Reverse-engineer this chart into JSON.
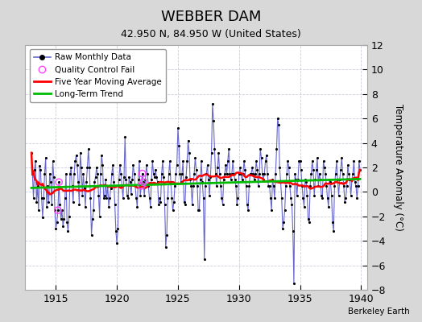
{
  "title": "WEBBER DAM",
  "subtitle": "42.950 N, 84.950 W (United States)",
  "ylabel": "Temperature Anomaly (°C)",
  "attribution": "Berkeley Earth",
  "ylim": [
    -8,
    12
  ],
  "yticks": [
    -8,
    -6,
    -4,
    -2,
    0,
    2,
    4,
    6,
    8,
    10,
    12
  ],
  "xlim": [
    1912.5,
    1940.5
  ],
  "xticks": [
    1915,
    1920,
    1925,
    1930,
    1935,
    1940
  ],
  "bg_color": "#d8d8d8",
  "plot_bg_color": "#ffffff",
  "raw_line_color": "#6666cc",
  "raw_dot_color": "#000000",
  "ma_color": "#ff0000",
  "trend_color": "#00bb00",
  "qc_color": "#ff44ff",
  "raw_data": [
    3.2,
    1.5,
    -0.5,
    1.8,
    2.5,
    -0.8,
    0.5,
    -1.5,
    2.1,
    1.8,
    -0.5,
    -2.1,
    -0.5,
    1.5,
    2.8,
    -1.2,
    0.5,
    -0.8,
    1.5,
    0.8,
    -1.0,
    2.5,
    1.2,
    -1.5,
    -3.0,
    -2.5,
    -1.5,
    0.8,
    -1.0,
    -2.2,
    -1.5,
    -2.8,
    -2.2,
    -0.5,
    1.5,
    -2.5,
    -3.2,
    -2.0,
    1.5,
    2.0,
    0.5,
    -0.8,
    1.5,
    2.5,
    3.0,
    2.2,
    0.8,
    -1.0,
    3.2,
    2.0,
    -0.3,
    1.5,
    0.3,
    -1.2,
    0.8,
    2.0,
    3.5,
    2.0,
    -0.5,
    -3.5,
    -2.2,
    -1.5,
    0.8,
    1.2,
    2.0,
    1.5,
    -0.3,
    -2.0,
    1.5,
    3.0,
    2.2,
    -0.5,
    -0.3,
    1.0,
    -0.5,
    0.5,
    -1.2,
    -0.5,
    0.3,
    1.5,
    2.2,
    0.8,
    -1.0,
    -3.2,
    -4.2,
    -3.0,
    1.0,
    2.2,
    1.5,
    0.5,
    -0.5,
    1.2,
    4.5,
    1.0,
    -0.3,
    -0.5,
    1.2,
    0.8,
    -0.2,
    1.0,
    2.2,
    1.5,
    0.5,
    -0.5,
    -1.2,
    1.0,
    2.5,
    -0.3,
    0.5,
    1.5,
    0.8,
    -0.3,
    1.0,
    2.2,
    1.5,
    0.5,
    -0.5,
    -1.2,
    1.0,
    2.5,
    1.5,
    1.2,
    1.8,
    1.2,
    0.8,
    -1.0,
    -0.5,
    -0.8,
    1.5,
    2.5,
    1.2,
    -1.0,
    -4.5,
    -3.5,
    -0.5,
    1.5,
    2.5,
    0.8,
    -0.5,
    -1.5,
    -0.8,
    0.5,
    1.5,
    2.2,
    5.2,
    3.8,
    1.5,
    0.8,
    1.5,
    2.5,
    -0.8,
    -1.0,
    1.2,
    2.5,
    4.2,
    3.2,
    1.0,
    0.5,
    -1.0,
    0.5,
    1.5,
    2.8,
    1.8,
    0.5,
    -1.5,
    -1.5,
    1.0,
    2.5,
    0.8,
    -0.5,
    -5.5,
    0.5,
    1.5,
    2.2,
    1.0,
    -0.3,
    1.2,
    3.2,
    7.2,
    5.8,
    3.5,
    1.5,
    0.5,
    2.0,
    3.2,
    1.5,
    0.5,
    -0.5,
    -1.0,
    1.0,
    1.5,
    2.2,
    1.5,
    2.5,
    3.5,
    1.5,
    1.0,
    1.5,
    2.5,
    1.5,
    1.0,
    0.5,
    -1.0,
    -0.5,
    1.5,
    2.0,
    1.5,
    1.0,
    1.5,
    2.5,
    1.8,
    0.5,
    -1.0,
    -1.5,
    0.5,
    1.5,
    1.5,
    2.0,
    1.5,
    1.0,
    1.5,
    2.5,
    1.8,
    0.5,
    1.5,
    3.5,
    2.8,
    1.5,
    1.0,
    1.5,
    2.5,
    3.0,
    1.5,
    0.5,
    0.5,
    -0.5,
    -1.5,
    1.0,
    0.5,
    -0.5,
    1.5,
    3.5,
    6.0,
    5.5,
    2.0,
    0.8,
    -0.5,
    -3.0,
    -2.5,
    -1.5,
    0.5,
    1.5,
    2.5,
    2.0,
    0.5,
    -0.5,
    -1.0,
    -3.2,
    -7.5,
    1.5,
    1.0,
    -0.3,
    1.0,
    2.5,
    2.5,
    1.8,
    0.5,
    -0.5,
    -1.2,
    1.0,
    0.8,
    -0.3,
    -2.2,
    -2.5,
    0.5,
    1.5,
    2.5,
    1.8,
    -0.3,
    1.0,
    1.8,
    2.8,
    0.5,
    1.5,
    1.0,
    -0.3,
    -0.5,
    2.5,
    2.0,
    1.5,
    0.5,
    -0.5,
    -1.2,
    1.0,
    0.8,
    -0.3,
    -2.5,
    -3.2,
    0.5,
    1.5,
    2.5,
    1.0,
    -0.3,
    1.0,
    1.8,
    2.8,
    1.5,
    0.5,
    -0.8,
    -0.5,
    0.5,
    2.2,
    1.5,
    1.0,
    -0.3,
    1.0,
    1.5,
    2.5,
    0.8,
    0.5,
    -0.5,
    0.5,
    2.5,
    1.8
  ],
  "qc_fail_indices": [
    26,
    27,
    108,
    109,
    110
  ],
  "legend_loc": "upper left"
}
